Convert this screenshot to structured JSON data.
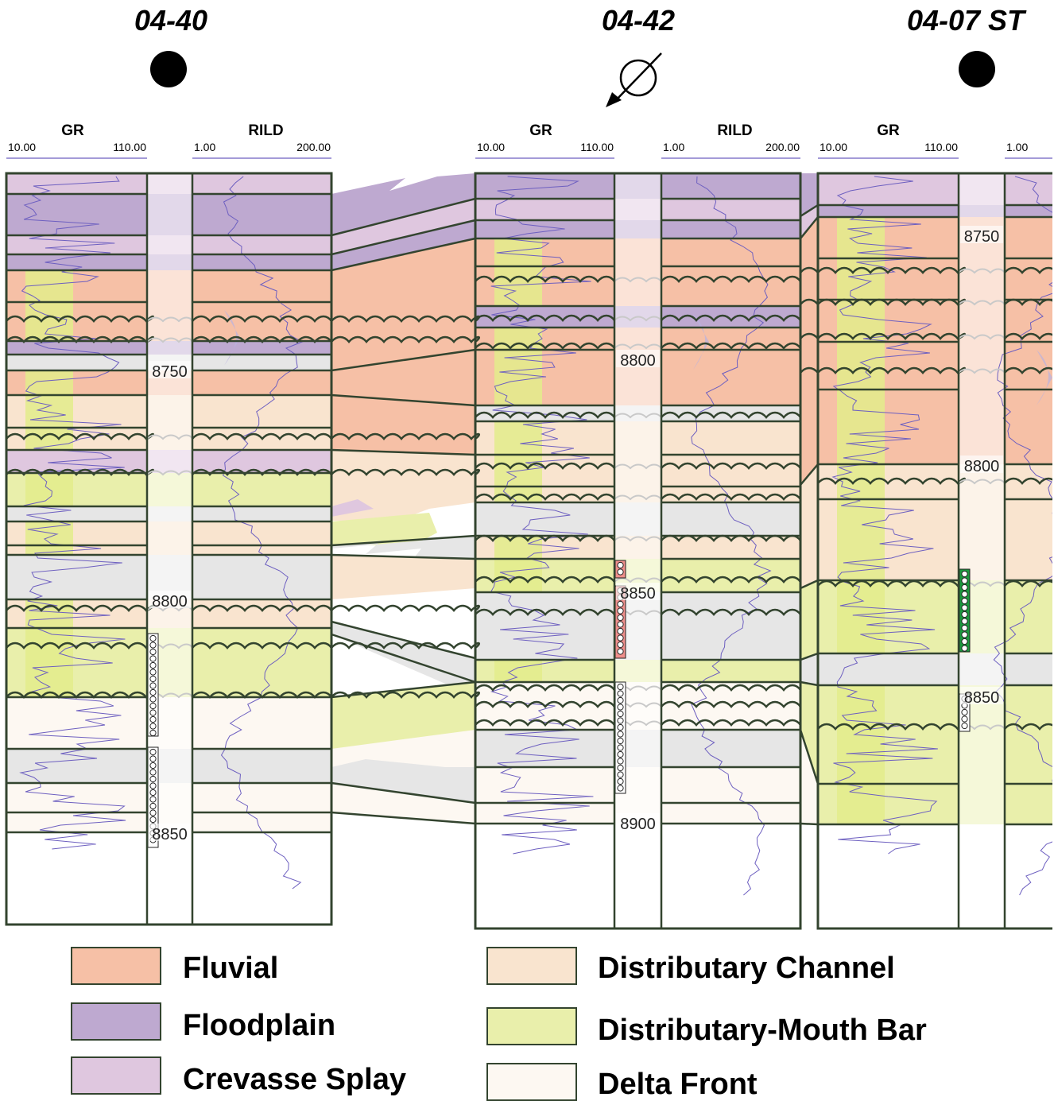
{
  "colors": {
    "fluvial": "#f6c0a6",
    "floodplain": "#bea9d0",
    "crevasse_splay": "#dfc7df",
    "distributary_channel": "#f9e4cf",
    "mouth_bar": "#e9efab",
    "delta_front": "#fdf8f2",
    "shale": "#e6e6e6",
    "gr_sand_fill": "#e3ec8b",
    "res_fill": "#b9b2e0",
    "curve": "#6d5fc0",
    "frame": "#33442f",
    "perf_red": "#ef8f8c",
    "perf_green": "#1b9a3e"
  },
  "wells": [
    {
      "name": "04-40",
      "symbol": "filled-circle-icon",
      "gr": {
        "label": "GR",
        "min": "10.00",
        "max": "110.00"
      },
      "res": {
        "label": "RILD",
        "min": "1.00",
        "max": "200.00"
      },
      "depths": [
        "8750",
        "8800",
        "8850"
      ]
    },
    {
      "name": "04-42",
      "symbol": "directional-well-icon",
      "gr": {
        "label": "GR",
        "min": "10.00",
        "max": "110.00"
      },
      "res": {
        "label": "RILD",
        "min": "1.00",
        "max": "200.00"
      },
      "depths": [
        "8800",
        "8850",
        "8900"
      ]
    },
    {
      "name": "04-07 ST",
      "symbol": "filled-circle-icon",
      "gr": {
        "label": "GR",
        "min": "10.00",
        "max": "110.00"
      },
      "res": {
        "label": "RILD",
        "min": "1.00",
        "max": ""
      },
      "depths": [
        "8750",
        "8800",
        "8850"
      ]
    }
  ],
  "legend": [
    {
      "label": "Fluvial",
      "color_key": "fluvial"
    },
    {
      "label": "Floodplain",
      "color_key": "floodplain"
    },
    {
      "label": "Crevasse Splay",
      "color_key": "crevasse_splay"
    },
    {
      "label": "Distributary Channel",
      "color_key": "distributary_channel"
    },
    {
      "label": "Distributary-Mouth Bar",
      "color_key": "mouth_bar"
    },
    {
      "label": "Delta Front",
      "color_key": "delta_front"
    }
  ],
  "well_facies": [
    [
      "crevasse_splay",
      "floodplain",
      "crevasse_splay",
      "floodplain",
      "fluvial",
      "fluvial",
      "floodplain",
      "shale",
      "fluvial",
      "distributary_channel",
      "distributary_channel",
      "crevasse_splay",
      "mouth_bar",
      "shale",
      "distributary_channel",
      "distributary_channel",
      "shale",
      "distributary_channel",
      "mouth_bar",
      "delta_front",
      "shale",
      "delta_front",
      "delta_front"
    ],
    [
      "floodplain",
      "crevasse_splay",
      "floodplain",
      "fluvial",
      "fluvial",
      "floodplain",
      "fluvial",
      "fluvial",
      "shale",
      "distributary_channel",
      "distributary_channel",
      "distributary_channel",
      "shale",
      "distributary_channel",
      "mouth_bar",
      "shale",
      "mouth_bar",
      "delta_front",
      "shale",
      "delta_front",
      "delta_front"
    ],
    [
      "crevasse_splay",
      "floodplain",
      "fluvial",
      "fluvial",
      "fluvial",
      "fluvial",
      "fluvial",
      "distributary_channel",
      "distributary_channel",
      "mouth_bar",
      "shale",
      "mouth_bar",
      "mouth_bar",
      "delta_front"
    ]
  ]
}
